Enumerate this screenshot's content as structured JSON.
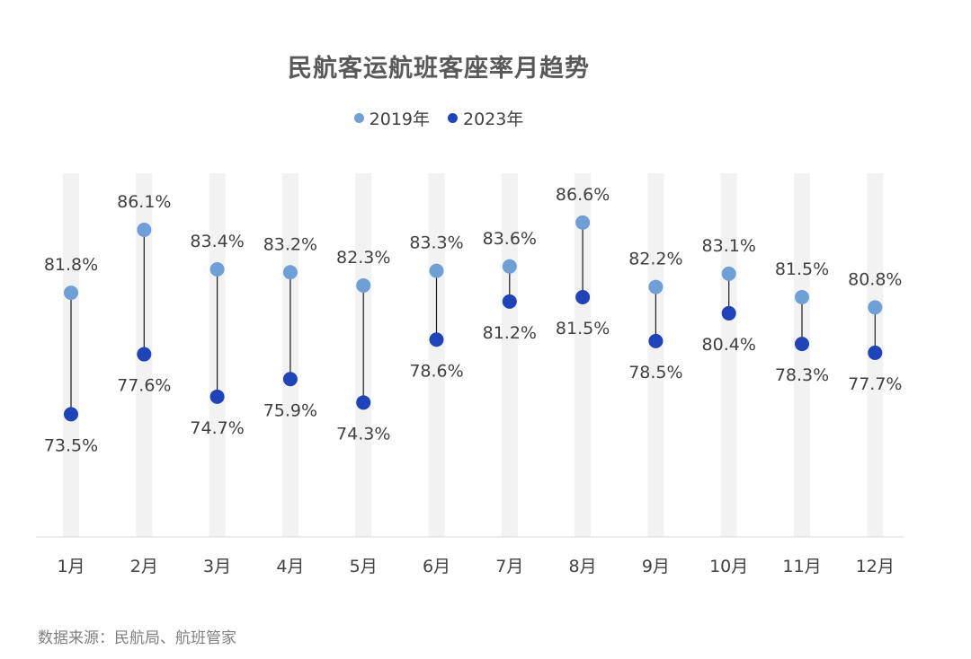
{
  "chart_data": {
    "type": "scatter",
    "subtype": "dumbbell",
    "title": "民航客运航班客座率月趋势",
    "categories": [
      "1月",
      "2月",
      "3月",
      "4月",
      "5月",
      "6月",
      "7月",
      "8月",
      "9月",
      "10月",
      "11月",
      "12月"
    ],
    "series": [
      {
        "name": "2019年",
        "color": "#6e9fd6",
        "values": [
          81.8,
          86.1,
          83.4,
          83.2,
          82.3,
          83.3,
          83.6,
          86.6,
          82.2,
          83.1,
          81.5,
          80.8
        ]
      },
      {
        "name": "2023年",
        "color": "#1f43b8",
        "values": [
          73.5,
          77.6,
          74.7,
          75.9,
          74.3,
          78.6,
          81.2,
          81.5,
          78.5,
          80.4,
          78.3,
          77.7
        ]
      }
    ],
    "value_suffix": "%",
    "legend_position": "top-center",
    "grid": false
  },
  "source": "数据来源：民航局、航班管家"
}
